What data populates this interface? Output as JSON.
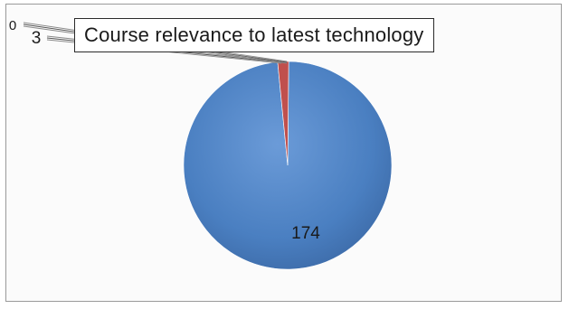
{
  "chart_data": {
    "type": "pie",
    "title": "Course relevance to latest technology",
    "categories": [
      "",
      "",
      ""
    ],
    "values": [
      174,
      3,
      0
    ],
    "slice_labels": [
      "174",
      "3",
      "0"
    ],
    "legend": "none",
    "colors": [
      "#4a7fc1",
      "#c0504d",
      "#9bbb59"
    ]
  }
}
